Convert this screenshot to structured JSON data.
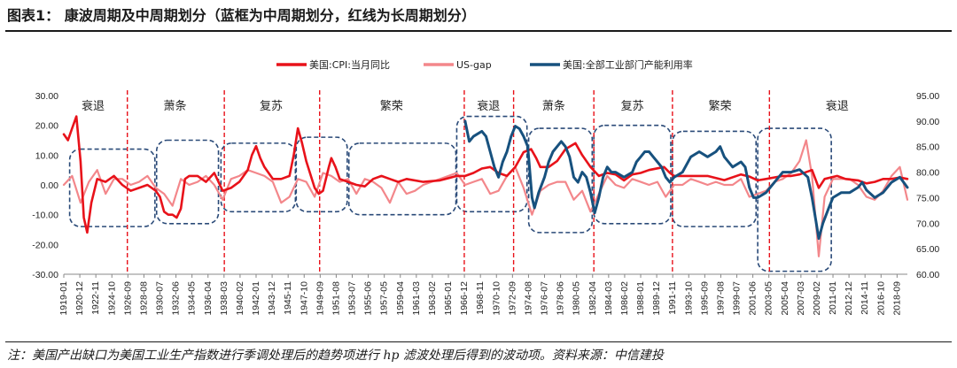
{
  "title": "图表1：  康波周期及中周期划分（蓝框为中周期划分，红线为长周期划分）",
  "note": "注：美国产出缺口为美国工业生产指数进行季调处理后的趋势项进行 hp 滤波处理后得到的波动项。资料来源：中信建投",
  "chart_data": {
    "type": "line",
    "colors": {
      "cpi": "#e8121a",
      "gap": "#f3878b",
      "cap": "#17517e",
      "divider": "#e8121a",
      "box": "#2a4a78"
    },
    "legend": [
      "美国:CPI:当月同比",
      "US-gap",
      "美国:全部工业部门产能利用率"
    ],
    "y_left": {
      "min": -30,
      "max": 30,
      "ticks": [
        "30.00",
        "20.00",
        "10.00",
        "0.00",
        "-10.00",
        "-20.00",
        "-30.00"
      ]
    },
    "y_right": {
      "min": 60,
      "max": 95,
      "ticks": [
        "95.00",
        "90.00",
        "85.00",
        "80.00",
        "75.00",
        "70.00",
        "65.00",
        "60.00"
      ]
    },
    "x_range": [
      1919.0,
      2019.9
    ],
    "x_ticks": [
      "1919-01",
      "1920-12",
      "1922-11",
      "1924-10",
      "1926-09",
      "1928-08",
      "1930-07",
      "1932-06",
      "1934-05",
      "1936-04",
      "1938-03",
      "1940-02",
      "1942-01",
      "1943-12",
      "1945-11",
      "1947-10",
      "1949-09",
      "1951-08",
      "1953-07",
      "1955-06",
      "1957-05",
      "1959-04",
      "1961-03",
      "1963-02",
      "1965-01",
      "1966-12",
      "1968-11",
      "1970-10",
      "1972-09",
      "1974-08",
      "1976-07",
      "1978-06",
      "1980-05",
      "1982-04",
      "1984-03",
      "1986-02",
      "1988-01",
      "1989-12",
      "1991-11",
      "1993-10",
      "1995-09",
      "1997-08",
      "1999-07",
      "2001-06",
      "2003-05",
      "2005-04",
      "2007-03",
      "2009-02",
      "2011-01",
      "2012-12",
      "2014-11",
      "2016-10",
      "2018-09"
    ],
    "long_cycle_dividers": [
      1926.6,
      1938.2,
      1949.6,
      1966.9,
      1972.8,
      1982.4,
      1991.8,
      2003.4
    ],
    "phase_labels": [
      {
        "text": "衰退",
        "x": 1922.5
      },
      {
        "text": "萧条",
        "x": 1932.3
      },
      {
        "text": "复苏",
        "x": 1943.8
      },
      {
        "text": "繁荣",
        "x": 1958.2
      },
      {
        "text": "衰退",
        "x": 1969.8
      },
      {
        "text": "萧条",
        "x": 1977.6
      },
      {
        "text": "复苏",
        "x": 1987.0
      },
      {
        "text": "繁荣",
        "x": 1997.5
      },
      {
        "text": "衰退",
        "x": 2011.5
      }
    ],
    "medium_cycle_boxes": [
      {
        "x0": 1919.7,
        "x1": 1929.9,
        "y0": 12,
        "y1": -14
      },
      {
        "x0": 1930.1,
        "x1": 1937.5,
        "y0": 15,
        "y1": -13
      },
      {
        "x0": 1937.8,
        "x1": 1946.7,
        "y0": 14,
        "y1": -9
      },
      {
        "x0": 1946.8,
        "x1": 1952.9,
        "y0": 16,
        "y1": -9
      },
      {
        "x0": 1953.1,
        "x1": 1965.9,
        "y0": 14,
        "y1": -10
      },
      {
        "x0": 1966.0,
        "x1": 1974.4,
        "y0": 23,
        "y1": -9
      },
      {
        "x0": 1974.6,
        "x1": 1982.2,
        "y0": 19,
        "y1": -16
      },
      {
        "x0": 1982.4,
        "x1": 1991.6,
        "y0": 20,
        "y1": -13
      },
      {
        "x0": 1991.8,
        "x1": 2001.8,
        "y0": 18,
        "y1": -14
      },
      {
        "x0": 2002.0,
        "x1": 2010.8,
        "y0": 19,
        "y1": -29
      }
    ],
    "series": [
      {
        "name": "美国:CPI:当月同比",
        "axis": "left",
        "x": [
          1919.0,
          1919.5,
          1920.0,
          1920.5,
          1921.0,
          1921.4,
          1921.8,
          1922.3,
          1923.0,
          1924.0,
          1925.0,
          1926.0,
          1927.0,
          1928.0,
          1929.0,
          1930.0,
          1930.5,
          1931.0,
          1931.5,
          1932.0,
          1932.5,
          1933.0,
          1933.5,
          1934.0,
          1935.0,
          1936.0,
          1937.0,
          1938.0,
          1939.0,
          1940.0,
          1941.0,
          1941.5,
          1942.0,
          1942.5,
          1943.0,
          1944.0,
          1945.0,
          1946.0,
          1946.5,
          1947.0,
          1947.5,
          1948.0,
          1949.0,
          1949.5,
          1950.0,
          1950.7,
          1951.0,
          1951.5,
          1952.0,
          1953.0,
          1954.0,
          1955.0,
          1956.0,
          1957.0,
          1958.0,
          1959.0,
          1960.0,
          1962.0,
          1964.0,
          1966.0,
          1967.0,
          1968.0,
          1969.0,
          1970.0,
          1971.0,
          1972.0,
          1973.0,
          1974.0,
          1974.9,
          1975.5,
          1976.0,
          1977.0,
          1978.0,
          1979.0,
          1980.2,
          1981.0,
          1982.0,
          1983.0,
          1984.0,
          1985.0,
          1986.0,
          1987.0,
          1988.0,
          1989.0,
          1990.8,
          1991.5,
          1992.0,
          1994.0,
          1996.0,
          1998.0,
          2000.0,
          2001.0,
          2002.0,
          2003.0,
          2005.0,
          2006.0,
          2007.0,
          2008.5,
          2009.3,
          2010.0,
          2011.5,
          2012.5,
          2014.0,
          2015.0,
          2016.0,
          2017.0,
          2018.0,
          2019.0,
          2019.9
        ],
        "y": [
          17,
          15,
          19,
          23,
          8,
          -11,
          -16,
          -6,
          2,
          1,
          3,
          0,
          -2,
          -1,
          0,
          -2,
          -4,
          -9,
          -10,
          -10,
          -11,
          -8,
          2,
          3,
          3,
          1,
          4,
          -2,
          -1,
          1,
          5,
          10,
          13,
          9,
          6,
          2,
          2,
          3,
          10,
          19,
          14,
          8,
          -1,
          -3,
          -2,
          6,
          9,
          6,
          2,
          1,
          0,
          -0.5,
          2,
          3,
          2,
          1,
          2,
          1,
          1.5,
          3,
          3,
          4,
          5.5,
          6,
          4,
          3,
          6,
          11,
          12,
          9,
          6,
          6,
          8,
          12,
          14,
          10,
          6,
          3,
          4,
          3.5,
          1.5,
          3.5,
          4,
          5,
          6,
          4,
          3,
          3,
          3,
          1.6,
          3.5,
          2.8,
          1.5,
          2,
          3,
          3,
          3.5,
          5,
          -1,
          2,
          3,
          2,
          1.5,
          0.5,
          1,
          2,
          2,
          2.5,
          2
        ]
      },
      {
        "name": "US-gap",
        "axis": "left",
        "x": [
          1919.0,
          1920.0,
          1921.0,
          1922.0,
          1923.0,
          1924.0,
          1925.0,
          1926.0,
          1927.0,
          1928.0,
          1929.0,
          1930.0,
          1931.0,
          1932.0,
          1933.0,
          1934.0,
          1935.0,
          1936.0,
          1937.0,
          1938.0,
          1939.0,
          1940.0,
          1941.0,
          1942.0,
          1943.0,
          1944.0,
          1945.0,
          1946.0,
          1947.0,
          1948.0,
          1949.0,
          1950.0,
          1951.0,
          1952.0,
          1953.0,
          1954.0,
          1955.0,
          1956.0,
          1957.0,
          1958.0,
          1959.0,
          1960.0,
          1961.0,
          1962.0,
          1963.0,
          1964.0,
          1965.0,
          1966.0,
          1967.0,
          1968.0,
          1969.0,
          1970.0,
          1971.0,
          1972.0,
          1973.0,
          1974.0,
          1975.0,
          1976.0,
          1977.0,
          1978.0,
          1979.0,
          1980.0,
          1981.0,
          1982.0,
          1983.0,
          1984.0,
          1985.0,
          1986.0,
          1987.0,
          1988.0,
          1989.0,
          1990.0,
          1991.0,
          1992.0,
          1993.0,
          1994.0,
          1995.0,
          1996.0,
          1997.0,
          1998.0,
          1999.0,
          2000.0,
          2001.0,
          2002.0,
          2003.0,
          2004.0,
          2005.0,
          2006.0,
          2007.0,
          2007.8,
          2008.5,
          2009.3,
          2010.0,
          2011.0,
          2012.0,
          2013.0,
          2014.0,
          2015.0,
          2016.0,
          2017.0,
          2018.0,
          2019.0,
          2019.9
        ],
        "y": [
          0,
          3,
          -6,
          1,
          5,
          -3,
          2,
          2,
          0,
          1,
          3,
          -1,
          -3,
          -7,
          2,
          0,
          1,
          3,
          0,
          -5,
          2,
          3,
          5,
          4,
          3,
          1,
          -6,
          -4,
          2,
          1,
          -4,
          4,
          3,
          1,
          2,
          -3,
          2,
          1,
          -1,
          -6,
          1,
          -3,
          -2,
          0,
          1,
          2,
          3,
          4,
          0,
          1,
          2,
          -3,
          -2,
          3,
          6,
          -1,
          -10,
          -2,
          0,
          1,
          1,
          -5,
          -2,
          -9,
          -3,
          3,
          0,
          -1,
          2,
          1,
          0,
          1,
          -4,
          0,
          0,
          2,
          1,
          0,
          1,
          0,
          0,
          2,
          -4,
          -3,
          -2,
          1,
          2,
          4,
          8,
          15,
          3,
          -24,
          -4,
          2,
          2,
          2,
          0,
          -4,
          -5,
          -2,
          3,
          6,
          -5
        ]
      },
      {
        "name": "美国:全部工业部门产能利用率",
        "axis": "right",
        "x": [
          1967.0,
          1967.5,
          1968.0,
          1968.5,
          1969.0,
          1969.5,
          1970.0,
          1970.5,
          1971.0,
          1971.5,
          1972.0,
          1972.5,
          1973.0,
          1973.5,
          1974.0,
          1974.5,
          1975.0,
          1975.3,
          1975.8,
          1976.5,
          1977.0,
          1977.5,
          1978.0,
          1978.5,
          1979.0,
          1979.5,
          1980.0,
          1980.5,
          1981.0,
          1981.5,
          1982.0,
          1982.5,
          1983.0,
          1983.5,
          1984.0,
          1984.5,
          1985.0,
          1986.0,
          1987.0,
          1987.5,
          1988.0,
          1988.5,
          1989.0,
          1989.5,
          1990.0,
          1990.5,
          1991.0,
          1991.5,
          1992.0,
          1993.0,
          1994.0,
          1995.0,
          1996.0,
          1997.0,
          1997.5,
          1998.0,
          1999.0,
          2000.0,
          2000.5,
          2001.0,
          2001.5,
          2002.0,
          2003.0,
          2004.0,
          2005.0,
          2006.0,
          2007.0,
          2008.0,
          2008.5,
          2009.0,
          2009.3,
          2009.8,
          2010.5,
          2011.0,
          2012.0,
          2013.0,
          2014.0,
          2014.5,
          2015.0,
          2016.0,
          2017.0,
          2018.0,
          2019.0,
          2019.9
        ],
        "y": [
          90,
          86,
          87,
          87.5,
          88,
          87,
          84,
          81,
          79,
          82,
          84,
          87,
          89,
          88.5,
          87,
          85,
          75,
          73,
          76,
          79,
          82,
          84,
          85,
          86,
          85,
          83,
          79,
          78,
          80,
          79,
          76,
          72,
          75,
          79,
          81,
          80,
          80,
          79,
          80,
          82,
          83,
          84,
          84,
          83,
          82,
          81,
          79,
          78,
          79,
          80,
          83,
          84,
          83,
          84,
          85,
          83,
          81,
          82,
          81,
          77,
          75,
          75,
          76,
          78,
          80,
          80,
          80.5,
          79,
          75,
          70,
          67,
          70,
          73,
          75,
          76,
          76,
          77,
          78,
          76.5,
          75,
          76,
          78,
          79,
          77
        ]
      }
    ]
  }
}
